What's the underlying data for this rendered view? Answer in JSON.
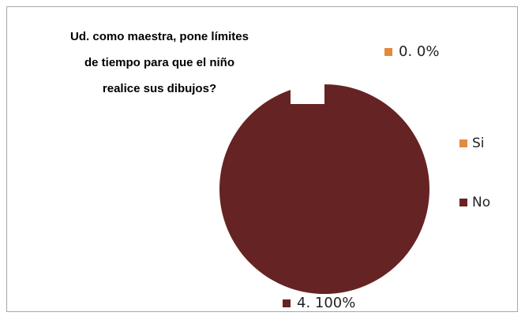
{
  "chart_data": {
    "type": "pie",
    "title_lines": [
      "Ud. como maestra, pone límites",
      "de tiempo para que el niño",
      "realice sus dibujos?"
    ],
    "categories": [
      "Si",
      "No"
    ],
    "values": [
      0,
      4
    ],
    "percent_labels": [
      "0%",
      "100%"
    ],
    "data_labels": [
      "0. 0%",
      "4. 100%"
    ],
    "colors": [
      "#e2893a",
      "#662323"
    ],
    "legend_position": "right"
  }
}
